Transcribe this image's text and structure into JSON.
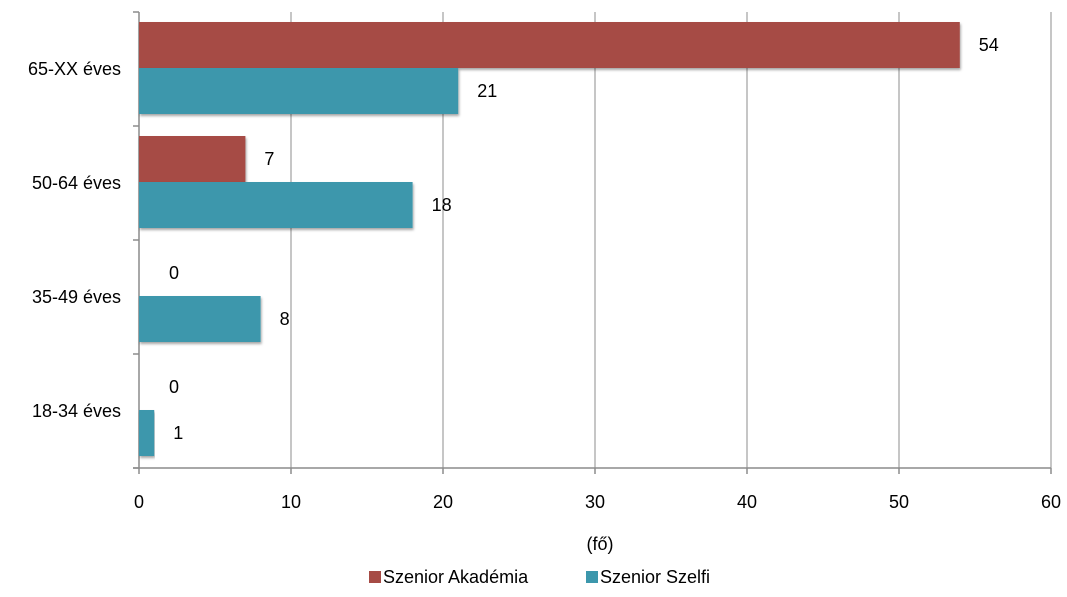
{
  "chart_data": {
    "type": "bar",
    "orientation": "horizontal",
    "categories": [
      "65-XX éves",
      "50-64 éves",
      "35-49 éves",
      "18-34 éves"
    ],
    "series": [
      {
        "name": "Szenior Akadémia",
        "values": [
          54,
          7,
          0,
          0
        ],
        "color": "#a64b45"
      },
      {
        "name": "Szenior Szelfi",
        "values": [
          21,
          18,
          8,
          1
        ],
        "color": "#3c97ac"
      }
    ],
    "x_ticks": [
      0,
      10,
      20,
      30,
      40,
      50,
      60
    ],
    "xlim": [
      0,
      60
    ],
    "xlabel": "(fő)",
    "ylabel": "",
    "title": "",
    "grid": "vertical",
    "legend_position": "bottom",
    "data_labels": true
  }
}
